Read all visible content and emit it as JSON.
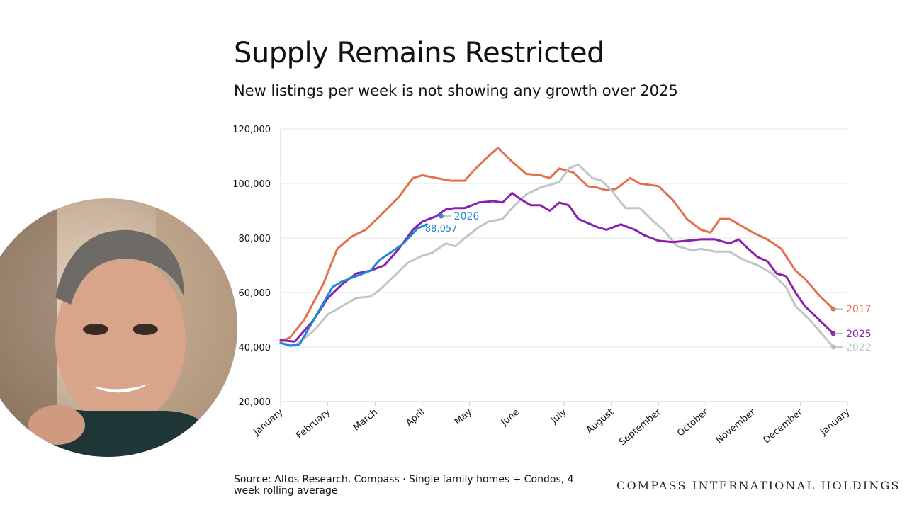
{
  "title": "Supply Remains Restricted",
  "subtitle": "New listings per week is not showing any growth over 2025",
  "source": "Source: Altos Research, Compass · Single family homes + Condos, 4 week rolling average",
  "brand": "COMPASS INTERNATIONAL HOLDINGS",
  "presenter_label": "presenter webcam",
  "chart_data": {
    "type": "line",
    "title": "Supply Remains Restricted",
    "subtitle": "New listings per week is not showing any growth over 2025",
    "xlabel": "",
    "ylabel": "",
    "ylim": [
      20000,
      120000
    ],
    "yticks": [
      20000,
      40000,
      60000,
      80000,
      100000,
      120000
    ],
    "ytick_labels": [
      "20,000",
      "40,000",
      "60,000",
      "80,000",
      "100,000",
      "120,000"
    ],
    "xlim": [
      0,
      12
    ],
    "xtick_labels": [
      "January",
      "February",
      "March",
      "April",
      "May",
      "June",
      "July",
      "August",
      "September",
      "October",
      "November",
      "December",
      "January"
    ],
    "grid": "horizontal",
    "legend": "end-of-line labels",
    "series": [
      {
        "name": "2017",
        "color": "#E2704A",
        "x": [
          0,
          0.2,
          0.5,
          0.9,
          1.2,
          1.5,
          1.8,
          2.1,
          2.5,
          2.8,
          3.0,
          3.3,
          3.6,
          3.9,
          4.1,
          4.4,
          4.6,
          4.9,
          5.2,
          5.5,
          5.7,
          5.9,
          6.2,
          6.5,
          6.7,
          6.9,
          7.1,
          7.4,
          7.6,
          8.0,
          8.3,
          8.6,
          8.9,
          9.1,
          9.3,
          9.5,
          9.7,
          10.0,
          10.3,
          10.6,
          10.9,
          11.1,
          11.4,
          11.7
        ],
        "y": [
          42000,
          43500,
          50000,
          63000,
          76000,
          80500,
          83000,
          88000,
          95000,
          102000,
          103000,
          102000,
          101000,
          101000,
          105000,
          110000,
          113000,
          108000,
          103500,
          103000,
          102000,
          105500,
          104000,
          99000,
          98500,
          97500,
          98000,
          102000,
          100000,
          99000,
          94000,
          87000,
          83000,
          82000,
          87000,
          87000,
          85000,
          82000,
          79500,
          76000,
          68000,
          65000,
          59000,
          54000
        ]
      },
      {
        "name": "2022",
        "color": "#BFC6C5",
        "x": [
          0,
          0.3,
          0.7,
          1.0,
          1.3,
          1.6,
          1.9,
          2.1,
          2.4,
          2.7,
          3.0,
          3.2,
          3.5,
          3.7,
          3.9,
          4.2,
          4.4,
          4.7,
          4.9,
          5.2,
          5.5,
          5.7,
          5.9,
          6.1,
          6.3,
          6.6,
          6.8,
          7.0,
          7.3,
          7.6,
          7.9,
          8.1,
          8.4,
          8.7,
          8.9,
          9.2,
          9.5,
          9.8,
          10.1,
          10.4,
          10.7,
          10.9,
          11.2,
          11.5,
          11.7
        ],
        "y": [
          41500,
          40500,
          46000,
          52000,
          55000,
          58000,
          58500,
          61000,
          66000,
          71000,
          73500,
          74500,
          78000,
          77000,
          80000,
          84000,
          86000,
          87000,
          91000,
          96000,
          98500,
          99500,
          100500,
          105500,
          107000,
          102000,
          101000,
          97500,
          91000,
          91000,
          86000,
          83000,
          77000,
          75500,
          76000,
          75000,
          75000,
          72000,
          70000,
          67000,
          62000,
          55000,
          50000,
          44000,
          40000
        ]
      },
      {
        "name": "2025",
        "color": "#8A1FAF",
        "x": [
          0,
          0.3,
          0.7,
          1.0,
          1.3,
          1.6,
          1.9,
          2.2,
          2.5,
          2.8,
          3.0,
          3.3,
          3.5,
          3.7,
          3.9,
          4.2,
          4.5,
          4.7,
          4.9,
          5.1,
          5.3,
          5.5,
          5.7,
          5.9,
          6.1,
          6.3,
          6.5,
          6.7,
          6.9,
          7.2,
          7.5,
          7.7,
          8.0,
          8.3,
          8.6,
          8.9,
          9.2,
          9.5,
          9.7,
          9.9,
          10.1,
          10.3,
          10.5,
          10.7,
          10.9,
          11.1,
          11.4,
          11.7
        ],
        "y": [
          42500,
          42000,
          50000,
          58000,
          63000,
          67000,
          68000,
          70000,
          76000,
          83000,
          86000,
          88000,
          90500,
          91000,
          91000,
          93000,
          93500,
          93000,
          96500,
          94000,
          92000,
          92000,
          90000,
          93000,
          92000,
          87000,
          85500,
          84000,
          83000,
          85000,
          83000,
          81000,
          79000,
          78500,
          79000,
          79500,
          79500,
          78000,
          79500,
          76000,
          73000,
          71500,
          67000,
          66000,
          60000,
          55000,
          50000,
          45000
        ]
      },
      {
        "name": "2026",
        "color": "#1F88D4",
        "x": [
          0,
          0.2,
          0.4,
          0.6,
          0.9,
          1.1,
          1.3,
          1.6,
          1.9,
          2.1,
          2.4,
          2.6,
          2.9,
          3.1
        ],
        "y": [
          41500,
          40500,
          41000,
          47000,
          56000,
          62000,
          64000,
          66000,
          68000,
          72000,
          75500,
          78000,
          83500,
          85000
        ]
      }
    ],
    "annotations": [
      {
        "series": "2026",
        "label": "2026",
        "value_label": "88,057",
        "x": 3.4,
        "y": 88057
      },
      {
        "series": "2017",
        "label": "2017",
        "x": 11.7,
        "y": 54000
      },
      {
        "series": "2025",
        "label": "2025",
        "x": 11.7,
        "y": 45000
      },
      {
        "series": "2022",
        "label": "2022",
        "x": 11.7,
        "y": 40000
      }
    ]
  }
}
